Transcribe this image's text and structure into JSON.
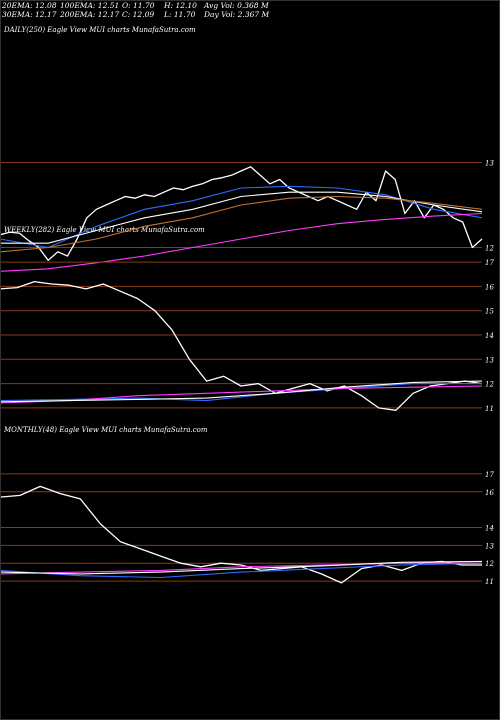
{
  "header": {
    "stats_row1": [
      {
        "label": "20EMA: 12.08"
      },
      {
        "label": "100EMA: 12.51"
      },
      {
        "label": "O: 11.70"
      },
      {
        "label": "H: 12.10"
      },
      {
        "label": "Avg Vol: 0.368 M"
      }
    ],
    "stats_row2": [
      {
        "label": "30EMA: 12.17"
      },
      {
        "label": "200EMA: 12.17"
      },
      {
        "label": "C: 12.09"
      },
      {
        "label": "L: 11.70"
      },
      {
        "label": "Day Vol: 2.367 M"
      }
    ]
  },
  "chart_data": [
    {
      "type": "line",
      "title": "DAILY(250) Eagle   View   MUI charts MunafaSutra.com",
      "y_ticks": [
        13,
        12
      ],
      "ylim": [
        11.5,
        13.5
      ],
      "series": [
        {
          "color": "#ffffff",
          "x": [
            0,
            5,
            10,
            15,
            20,
            25,
            30,
            35,
            40,
            45,
            50,
            55,
            60,
            65,
            70,
            75,
            80,
            85,
            90,
            95,
            100,
            105,
            110,
            115,
            120,
            125,
            130,
            135,
            140,
            145,
            150,
            155,
            160,
            165,
            170,
            175,
            180,
            185,
            190,
            195,
            200,
            205,
            210,
            215,
            220,
            225,
            230,
            235,
            240,
            245,
            250
          ],
          "values": [
            12.15,
            12.18,
            12.17,
            12.08,
            12.0,
            11.85,
            11.95,
            11.9,
            12.1,
            12.35,
            12.45,
            12.5,
            12.55,
            12.6,
            12.58,
            12.62,
            12.6,
            12.65,
            12.7,
            12.68,
            12.72,
            12.75,
            12.8,
            12.82,
            12.85,
            12.9,
            12.95,
            12.85,
            12.75,
            12.8,
            12.7,
            12.65,
            12.6,
            12.55,
            12.6,
            12.55,
            12.5,
            12.45,
            12.65,
            12.55,
            12.9,
            12.8,
            12.4,
            12.55,
            12.35,
            12.5,
            12.45,
            12.35,
            12.3,
            12.0,
            12.1
          ]
        },
        {
          "color": "#2f6bff",
          "x": [
            0,
            25,
            50,
            75,
            100,
            125,
            150,
            175,
            200,
            225,
            250
          ],
          "values": [
            12.1,
            12.0,
            12.25,
            12.45,
            12.55,
            12.7,
            12.72,
            12.7,
            12.62,
            12.45,
            12.35
          ]
        },
        {
          "color": "#ff3cff",
          "x": [
            0,
            25,
            50,
            75,
            100,
            125,
            150,
            175,
            200,
            225,
            250
          ],
          "values": [
            11.72,
            11.75,
            11.82,
            11.9,
            12.0,
            12.1,
            12.2,
            12.28,
            12.33,
            12.37,
            12.4
          ]
        },
        {
          "color": "#ffffff",
          "x": [
            0,
            25,
            50,
            75,
            100,
            125,
            150,
            175,
            200,
            225,
            250
          ],
          "values": [
            12.05,
            12.05,
            12.2,
            12.35,
            12.45,
            12.6,
            12.65,
            12.65,
            12.6,
            12.5,
            12.42
          ]
        },
        {
          "color": "#c07030",
          "x": [
            0,
            25,
            50,
            75,
            100,
            125,
            150,
            175,
            200,
            225,
            250
          ],
          "values": [
            11.95,
            12.0,
            12.1,
            12.25,
            12.35,
            12.5,
            12.58,
            12.6,
            12.58,
            12.52,
            12.45
          ]
        }
      ]
    },
    {
      "type": "line",
      "title": "WEEKLY(282) Eagle   View   MUI charts MunafaSutra.com",
      "y_ticks": [
        17,
        16,
        15,
        14,
        13,
        12,
        11
      ],
      "ylim": [
        10.5,
        17.5
      ],
      "series": [
        {
          "color": "#ffffff",
          "x": [
            0,
            10,
            20,
            30,
            40,
            50,
            60,
            70,
            80,
            90,
            100,
            110,
            120,
            130,
            140,
            150,
            160,
            170,
            180,
            190,
            200,
            210,
            220,
            230,
            240,
            250,
            260,
            270,
            280
          ],
          "values": [
            15.9,
            15.95,
            16.2,
            16.1,
            16.05,
            15.9,
            16.1,
            15.8,
            15.5,
            15.0,
            14.2,
            13.0,
            12.1,
            12.3,
            11.9,
            12.0,
            11.6,
            11.8,
            12.0,
            11.7,
            11.9,
            11.5,
            11.0,
            10.9,
            11.6,
            11.9,
            12.0,
            12.1,
            12.0
          ]
        },
        {
          "color": "#2f6bff",
          "x": [
            0,
            40,
            80,
            120,
            160,
            200,
            240,
            280
          ],
          "values": [
            11.3,
            11.35,
            11.4,
            11.3,
            11.6,
            11.8,
            12.0,
            12.0
          ]
        },
        {
          "color": "#ff3cff",
          "x": [
            0,
            40,
            80,
            120,
            160,
            200,
            240,
            280
          ],
          "values": [
            11.2,
            11.3,
            11.5,
            11.6,
            11.7,
            11.8,
            11.85,
            11.9
          ]
        },
        {
          "color": "#ffffff",
          "x": [
            0,
            40,
            80,
            120,
            160,
            200,
            240,
            280
          ],
          "values": [
            11.25,
            11.3,
            11.35,
            11.4,
            11.6,
            11.85,
            12.05,
            12.1
          ]
        }
      ]
    },
    {
      "type": "line",
      "title": "MONTHLY(48) Eagle   View   MUI charts MunafaSutra.com",
      "y_ticks": [
        17,
        16,
        14,
        13,
        12,
        11
      ],
      "ylim": [
        10.5,
        17.5
      ],
      "series": [
        {
          "color": "#ffffff",
          "x": [
            0,
            2,
            4,
            6,
            8,
            10,
            12,
            14,
            16,
            18,
            20,
            22,
            24,
            26,
            28,
            30,
            32,
            34,
            36,
            38,
            40,
            42,
            44,
            46,
            48
          ],
          "values": [
            15.7,
            15.8,
            16.3,
            15.9,
            15.6,
            14.2,
            13.2,
            12.8,
            12.4,
            12.0,
            11.8,
            12.0,
            11.9,
            11.6,
            11.7,
            11.8,
            11.4,
            10.9,
            11.7,
            11.9,
            11.6,
            12.0,
            12.1,
            11.9,
            11.9
          ]
        },
        {
          "color": "#2f6bff",
          "x": [
            0,
            8,
            16,
            24,
            32,
            40,
            48
          ],
          "values": [
            11.6,
            11.3,
            11.2,
            11.5,
            11.7,
            11.9,
            12.0
          ]
        },
        {
          "color": "#ff3cff",
          "x": [
            0,
            8,
            16,
            24,
            32,
            40,
            48
          ],
          "values": [
            11.4,
            11.5,
            11.6,
            11.8,
            11.9,
            12.0,
            12.0
          ]
        },
        {
          "color": "#ffffff",
          "x": [
            0,
            8,
            16,
            24,
            32,
            40,
            48
          ],
          "values": [
            11.5,
            11.4,
            11.5,
            11.7,
            11.85,
            12.05,
            12.1
          ]
        }
      ]
    }
  ]
}
